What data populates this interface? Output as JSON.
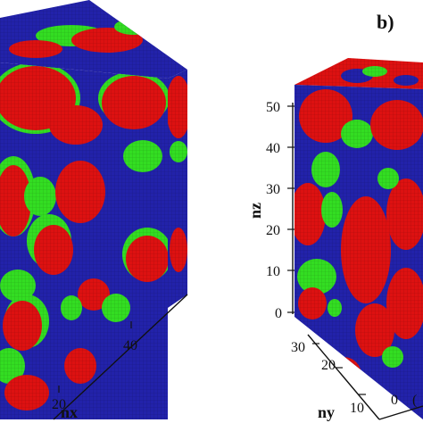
{
  "panels": [
    {
      "id": "a",
      "axis_labels": {
        "x": "nx"
      },
      "x_ticks": [
        "20",
        "40"
      ]
    },
    {
      "id": "b",
      "label": "b)",
      "axis_labels": {
        "y": "ny",
        "z": "nz"
      },
      "z_ticks": [
        "0",
        "10",
        "20",
        "30",
        "40",
        "50"
      ],
      "y_ticks": [
        "10",
        "20",
        "30"
      ],
      "x_ticks_partial": [
        "0",
        "("
      ]
    }
  ],
  "phase_colors": {
    "phase_1": "#dd1111",
    "phase_2": "#2222aa",
    "phase_3": "#33dd22"
  }
}
